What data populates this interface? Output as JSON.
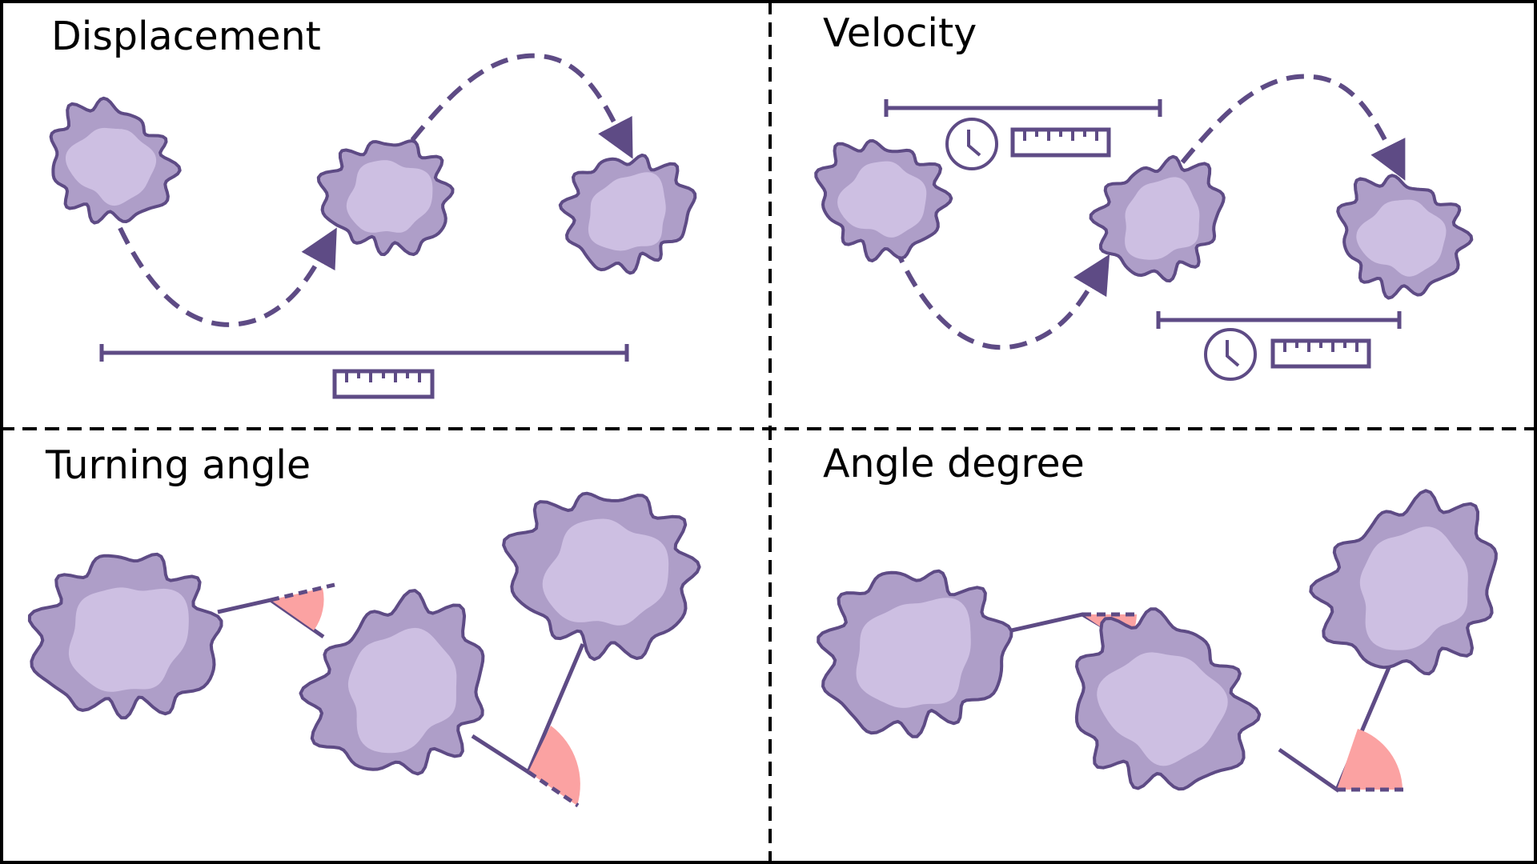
{
  "panels": {
    "displacement": {
      "title": "Displacement",
      "icons": [
        "ruler-icon"
      ]
    },
    "velocity": {
      "title": "Velocity",
      "icons": [
        "clock-icon",
        "ruler-icon"
      ]
    },
    "turning_angle": {
      "title": "Turning angle",
      "icons": [
        "angle-wedge"
      ]
    },
    "angle_degree": {
      "title": "Angle degree",
      "icons": [
        "angle-wedge"
      ]
    }
  },
  "colors": {
    "cell_outline": "#5e4b85",
    "cell_outer": "#ae9ec8",
    "cell_inner": "#cdbfe2",
    "path": "#5e4b85",
    "angle": "#fba2a2",
    "divider": "#000000"
  }
}
